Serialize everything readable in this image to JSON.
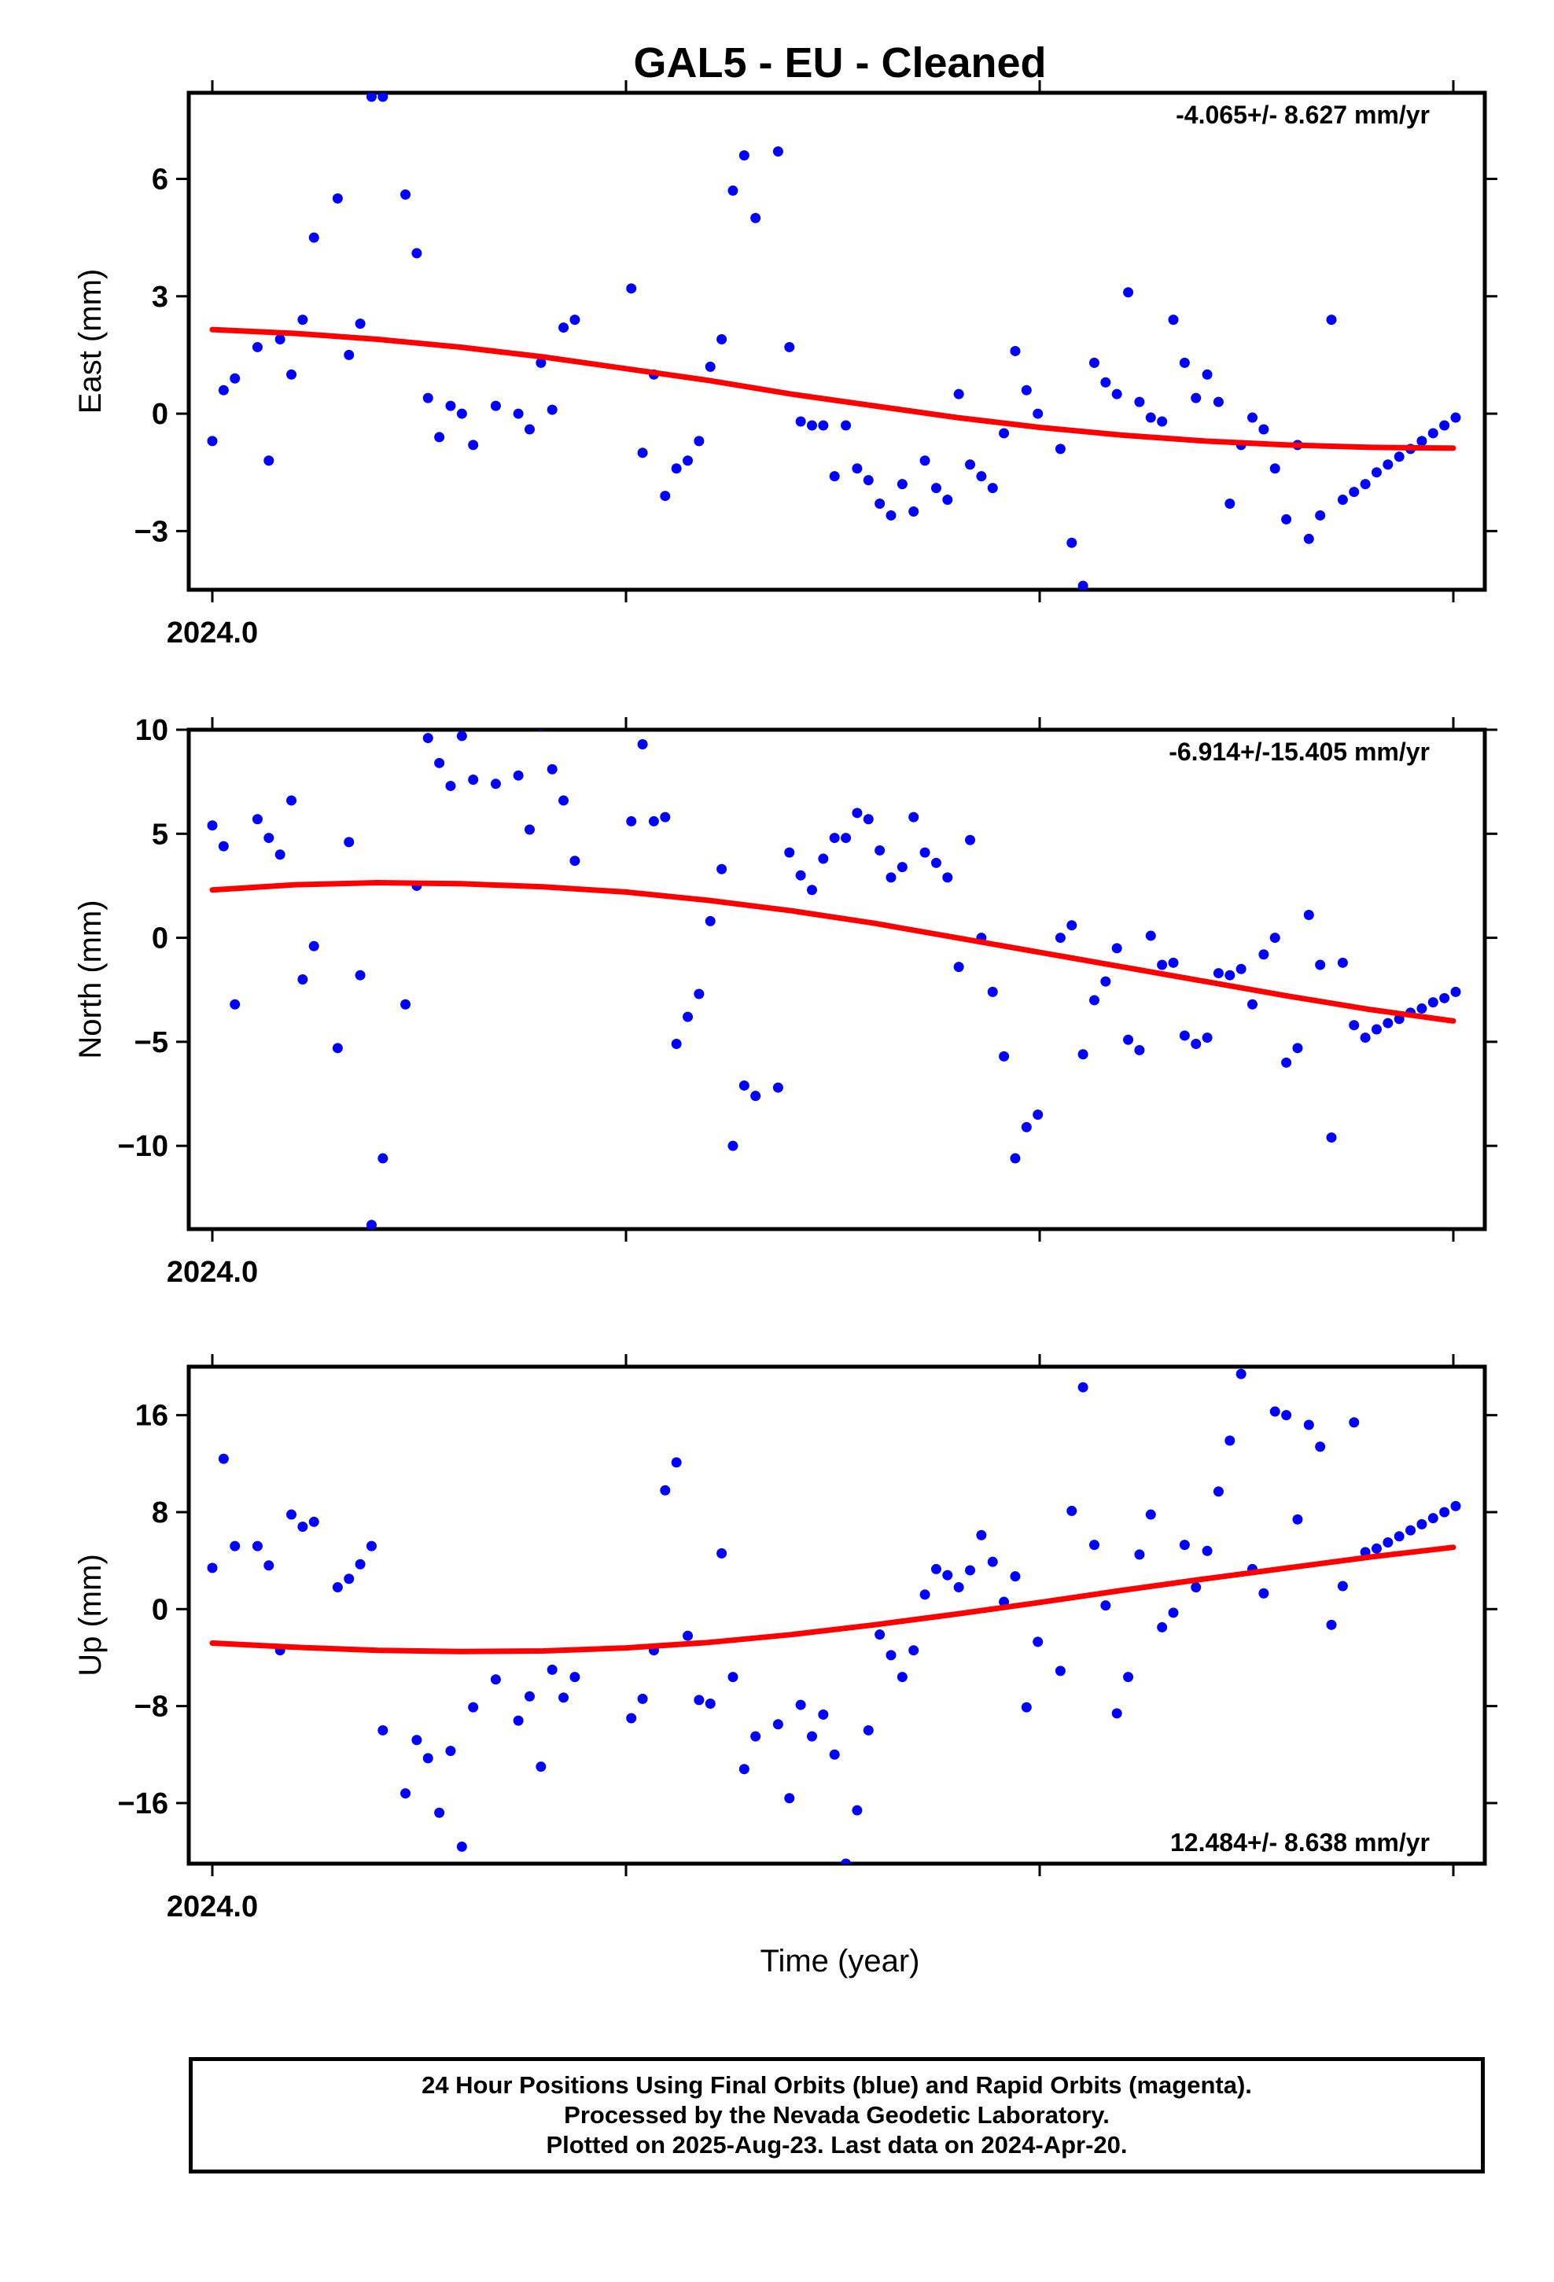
{
  "title": "GAL5  - EU - Cleaned",
  "xlabel": "Time (year)",
  "colors": {
    "points": "#0000ff",
    "fit": "#ff0000",
    "frame": "#000000"
  },
  "footer": {
    "line1": "24 Hour Positions Using Final Orbits (blue) and Rapid Orbits (magenta).",
    "line2": "Processed by the Nevada Geodetic Laboratory.",
    "line3": "Plotted on 2025-Aug-23. Last data on 2024-Apr-20."
  },
  "chart_data": [
    {
      "type": "scatter",
      "ylabel": "East (mm)",
      "xlim": [
        2024.0,
        2024.3
      ],
      "ylim": [
        -4.5,
        8.2
      ],
      "yticks": [
        -3,
        0,
        3,
        6
      ],
      "yticklabels": [
        "−3",
        "0",
        "3",
        "6"
      ],
      "xtick_label": "2024.0",
      "rate": "-4.065+/- 8.627 mm/yr",
      "rate_position": "top-right",
      "grid": false,
      "x": [
        2024.0,
        2024.00273,
        2024.00546,
        2024.01092,
        2024.01365,
        2024.01638,
        2024.01911,
        2024.02184,
        2024.02457,
        2024.0303,
        2024.03303,
        2024.03576,
        2024.03849,
        2024.04122,
        2024.04668,
        2024.04941,
        2024.05214,
        2024.05487,
        2024.0576,
        2024.06033,
        2024.06306,
        2024.06852,
        2024.07398,
        2024.07671,
        2024.07944,
        2024.08217,
        2024.0849,
        2024.08763,
        2024.10128,
        2024.10401,
        2024.10674,
        2024.10947,
        2024.1122,
        2024.11493,
        2024.11766,
        2024.12039,
        2024.12312,
        2024.12585,
        2024.12858,
        2024.13131,
        2024.13677,
        2024.1395,
        2024.14223,
        2024.14496,
        2024.14769,
        2024.15042,
        2024.15315,
        2024.15588,
        2024.15861,
        2024.16134,
        2024.16407,
        2024.1668,
        2024.16953,
        2024.17226,
        2024.17499,
        2024.17772,
        2024.18045,
        2024.18318,
        2024.18591,
        2024.18864,
        2024.19137,
        2024.1941,
        2024.19683,
        2024.19956,
        2024.20502,
        2024.20775,
        2024.21048,
        2024.21321,
        2024.21594,
        2024.21867,
        2024.2214,
        2024.22413,
        2024.22686,
        2024.22959,
        2024.23232,
        2024.23505,
        2024.23778,
        2024.24051,
        2024.24324,
        2024.24597,
        2024.2487,
        2024.25143,
        2024.25416,
        2024.25689,
        2024.25962,
        2024.26235,
        2024.26508,
        2024.26781,
        2024.27054,
        2024.27327,
        2024.276,
        2024.27873,
        2024.28146,
        2024.28419,
        2024.28692,
        2024.28965,
        2024.29238,
        2024.29511,
        2024.29784,
        2024.30057
      ],
      "y": [
        -0.7,
        0.6,
        0.9,
        1.7,
        -1.2,
        1.9,
        1.0,
        2.4,
        4.5,
        5.5,
        1.5,
        2.3,
        8.1,
        8.1,
        5.6,
        4.1,
        0.4,
        -0.6,
        0.2,
        0.0,
        -0.8,
        0.2,
        0.0,
        -0.4,
        1.3,
        0.1,
        2.2,
        2.4,
        3.2,
        -1.0,
        1.0,
        -2.1,
        -1.4,
        -1.2,
        -0.7,
        1.2,
        1.9,
        5.7,
        6.6,
        5.0,
        6.7,
        1.7,
        -0.2,
        -0.3,
        -0.3,
        -1.6,
        -0.3,
        -1.4,
        -1.7,
        -2.3,
        -2.6,
        -1.8,
        -2.5,
        -1.2,
        -1.9,
        -2.2,
        0.5,
        -1.3,
        -1.6,
        -1.9,
        -0.5,
        1.6,
        0.6,
        0.0,
        -0.9,
        -3.3,
        -4.4,
        1.3,
        0.8,
        0.5,
        3.1,
        0.3,
        -0.1,
        -0.2,
        2.4,
        1.3,
        0.4,
        1.0,
        0.3,
        -2.3,
        -0.8,
        -0.1,
        -0.4,
        -1.4,
        -2.7,
        -0.8,
        -3.2,
        -2.6,
        2.4,
        -2.2,
        -2.0,
        -1.8,
        -1.5,
        -1.3,
        -1.1,
        -0.9,
        -0.7,
        -0.5,
        -0.3,
        -0.1
      ],
      "fit": {
        "x": [
          2024.0,
          2024.02,
          2024.04,
          2024.06,
          2024.08,
          2024.1,
          2024.12,
          2024.14,
          2024.16,
          2024.18,
          2024.2,
          2024.22,
          2024.24,
          2024.26,
          2024.28,
          2024.3
        ],
        "y": [
          2.15,
          2.05,
          1.9,
          1.7,
          1.45,
          1.15,
          0.85,
          0.5,
          0.2,
          -0.1,
          -0.35,
          -0.55,
          -0.7,
          -0.8,
          -0.86,
          -0.88
        ]
      }
    },
    {
      "type": "scatter",
      "ylabel": "North (mm)",
      "xlim": [
        2024.0,
        2024.3
      ],
      "ylim": [
        -14.0,
        10.0
      ],
      "yticks": [
        -10,
        -5,
        0,
        5,
        10
      ],
      "yticklabels": [
        "−10",
        "−5",
        "0",
        "5",
        "10"
      ],
      "xtick_label": "2024.0",
      "rate": "-6.914+/-15.405 mm/yr",
      "rate_position": "top-right",
      "grid": false,
      "x": [
        2024.0,
        2024.00273,
        2024.00546,
        2024.01092,
        2024.01365,
        2024.01638,
        2024.01911,
        2024.02184,
        2024.02457,
        2024.0303,
        2024.03303,
        2024.03576,
        2024.03849,
        2024.04122,
        2024.04668,
        2024.04941,
        2024.05214,
        2024.05487,
        2024.0576,
        2024.06033,
        2024.06306,
        2024.06852,
        2024.07398,
        2024.07671,
        2024.07944,
        2024.08217,
        2024.0849,
        2024.08763,
        2024.10128,
        2024.10401,
        2024.10674,
        2024.10947,
        2024.1122,
        2024.11493,
        2024.11766,
        2024.12039,
        2024.12312,
        2024.12585,
        2024.12858,
        2024.13131,
        2024.13677,
        2024.1395,
        2024.14223,
        2024.14496,
        2024.14769,
        2024.15042,
        2024.15315,
        2024.15588,
        2024.15861,
        2024.16134,
        2024.16407,
        2024.1668,
        2024.16953,
        2024.17226,
        2024.17499,
        2024.17772,
        2024.18045,
        2024.18318,
        2024.18591,
        2024.18864,
        2024.19137,
        2024.1941,
        2024.19683,
        2024.19956,
        2024.20502,
        2024.20775,
        2024.21048,
        2024.21321,
        2024.21594,
        2024.21867,
        2024.2214,
        2024.22413,
        2024.22686,
        2024.22959,
        2024.23232,
        2024.23505,
        2024.23778,
        2024.24051,
        2024.24324,
        2024.24597,
        2024.2487,
        2024.25143,
        2024.25416,
        2024.25689,
        2024.25962,
        2024.26235,
        2024.26508,
        2024.26781,
        2024.27054,
        2024.27327,
        2024.276,
        2024.27873,
        2024.28146,
        2024.28419,
        2024.28692,
        2024.28965,
        2024.29238,
        2024.29511,
        2024.29784,
        2024.30057
      ],
      "y": [
        5.4,
        4.4,
        -3.2,
        5.7,
        4.8,
        4.0,
        6.6,
        -2.0,
        -0.4,
        -5.3,
        4.6,
        -1.8,
        -13.8,
        -10.6,
        -3.2,
        2.5,
        9.6,
        8.4,
        7.3,
        9.7,
        7.6,
        7.4,
        7.8,
        5.2,
        10.2,
        8.1,
        6.6,
        3.7,
        5.6,
        9.3,
        5.6,
        5.8,
        -5.1,
        -3.8,
        -2.7,
        0.8,
        3.3,
        -10.0,
        -7.1,
        -7.6,
        -7.2,
        4.1,
        3.0,
        2.3,
        3.8,
        4.8,
        4.8,
        6.0,
        5.7,
        4.2,
        2.9,
        3.4,
        5.8,
        4.1,
        3.6,
        2.9,
        -1.4,
        4.7,
        0.0,
        -2.6,
        -5.7,
        -10.6,
        -9.1,
        -8.5,
        0.0,
        0.6,
        -5.6,
        -3.0,
        -2.1,
        -0.5,
        -4.9,
        -5.4,
        0.1,
        -1.3,
        -1.2,
        -4.7,
        -5.1,
        -4.8,
        -1.7,
        -1.8,
        -1.5,
        -3.2,
        -0.8,
        0.0,
        -6.0,
        -5.3,
        1.1,
        -1.3,
        -9.6,
        -1.2,
        -4.2,
        -4.8,
        -4.4,
        -4.1,
        -3.9,
        -3.6,
        -3.4,
        -3.1,
        -2.9,
        -2.6
      ],
      "fit": {
        "x": [
          2024.0,
          2024.02,
          2024.04,
          2024.06,
          2024.08,
          2024.1,
          2024.12,
          2024.14,
          2024.16,
          2024.18,
          2024.2,
          2024.22,
          2024.24,
          2024.26,
          2024.28,
          2024.3
        ],
        "y": [
          2.3,
          2.55,
          2.65,
          2.6,
          2.45,
          2.2,
          1.8,
          1.3,
          0.7,
          0.0,
          -0.7,
          -1.4,
          -2.1,
          -2.8,
          -3.45,
          -4.0
        ]
      }
    },
    {
      "type": "scatter",
      "ylabel": "Up (mm)",
      "xlim": [
        2024.0,
        2024.3
      ],
      "ylim": [
        -21.0,
        20.0
      ],
      "yticks": [
        -16,
        -8,
        0,
        8,
        16
      ],
      "yticklabels": [
        "−16",
        "−8",
        "0",
        "8",
        "16"
      ],
      "xtick_label": "2024.0",
      "rate": "12.484+/- 8.638 mm/yr",
      "rate_position": "bottom-right",
      "grid": false,
      "x": [
        2024.0,
        2024.00273,
        2024.00546,
        2024.01092,
        2024.01365,
        2024.01638,
        2024.01911,
        2024.02184,
        2024.02457,
        2024.0303,
        2024.03303,
        2024.03576,
        2024.03849,
        2024.04122,
        2024.04668,
        2024.04941,
        2024.05214,
        2024.05487,
        2024.0576,
        2024.06033,
        2024.06306,
        2024.06852,
        2024.07398,
        2024.07671,
        2024.07944,
        2024.08217,
        2024.0849,
        2024.08763,
        2024.10128,
        2024.10401,
        2024.10674,
        2024.10947,
        2024.1122,
        2024.11493,
        2024.11766,
        2024.12039,
        2024.12312,
        2024.12585,
        2024.12858,
        2024.13131,
        2024.13677,
        2024.1395,
        2024.14223,
        2024.14496,
        2024.14769,
        2024.15042,
        2024.15315,
        2024.15588,
        2024.15861,
        2024.16134,
        2024.16407,
        2024.1668,
        2024.16953,
        2024.17226,
        2024.17499,
        2024.17772,
        2024.18045,
        2024.18318,
        2024.18591,
        2024.18864,
        2024.19137,
        2024.1941,
        2024.19683,
        2024.19956,
        2024.20502,
        2024.20775,
        2024.21048,
        2024.21321,
        2024.21594,
        2024.21867,
        2024.2214,
        2024.22413,
        2024.22686,
        2024.22959,
        2024.23232,
        2024.23505,
        2024.23778,
        2024.24051,
        2024.24324,
        2024.24597,
        2024.2487,
        2024.25143,
        2024.25416,
        2024.25689,
        2024.25962,
        2024.26235,
        2024.26508,
        2024.26781,
        2024.27054,
        2024.27327,
        2024.276,
        2024.27873,
        2024.28146,
        2024.28419,
        2024.28692,
        2024.28965,
        2024.29238,
        2024.29511,
        2024.29784,
        2024.30057
      ],
      "y": [
        3.4,
        12.4,
        5.2,
        5.2,
        3.6,
        -3.4,
        7.8,
        6.8,
        7.2,
        1.8,
        2.5,
        3.7,
        5.2,
        -10.0,
        -15.2,
        -10.8,
        -12.3,
        -16.8,
        -11.7,
        -19.6,
        -8.1,
        -5.8,
        -9.2,
        -7.2,
        -13.0,
        -5.0,
        -7.3,
        -5.6,
        -9.0,
        -7.4,
        -3.4,
        9.8,
        12.1,
        -2.2,
        -7.5,
        -7.8,
        4.6,
        -5.6,
        -13.2,
        -10.5,
        -9.5,
        -15.6,
        -7.9,
        -10.5,
        -8.7,
        -12.0,
        -21.0,
        -16.6,
        -10.0,
        -2.1,
        -3.8,
        -5.6,
        -3.4,
        1.2,
        3.3,
        2.8,
        1.8,
        3.2,
        6.1,
        3.9,
        0.6,
        2.7,
        -8.1,
        -2.7,
        -5.1,
        8.1,
        18.3,
        5.3,
        0.3,
        -8.6,
        -5.6,
        4.5,
        7.8,
        -1.5,
        -0.3,
        5.3,
        1.8,
        4.8,
        9.7,
        13.9,
        19.4,
        3.3,
        1.3,
        16.3,
        16.0,
        7.4,
        15.2,
        13.4,
        -1.3,
        1.9,
        15.4,
        4.7,
        5.0,
        5.5,
        6.0,
        6.5,
        7.0,
        7.5,
        8.0,
        8.5
      ],
      "fit": {
        "x": [
          2024.0,
          2024.02,
          2024.04,
          2024.06,
          2024.08,
          2024.1,
          2024.12,
          2024.14,
          2024.16,
          2024.18,
          2024.2,
          2024.22,
          2024.24,
          2024.26,
          2024.28,
          2024.3
        ],
        "y": [
          -2.8,
          -3.15,
          -3.4,
          -3.5,
          -3.45,
          -3.2,
          -2.75,
          -2.1,
          -1.3,
          -0.4,
          0.55,
          1.55,
          2.5,
          3.4,
          4.3,
          5.1
        ]
      }
    }
  ]
}
